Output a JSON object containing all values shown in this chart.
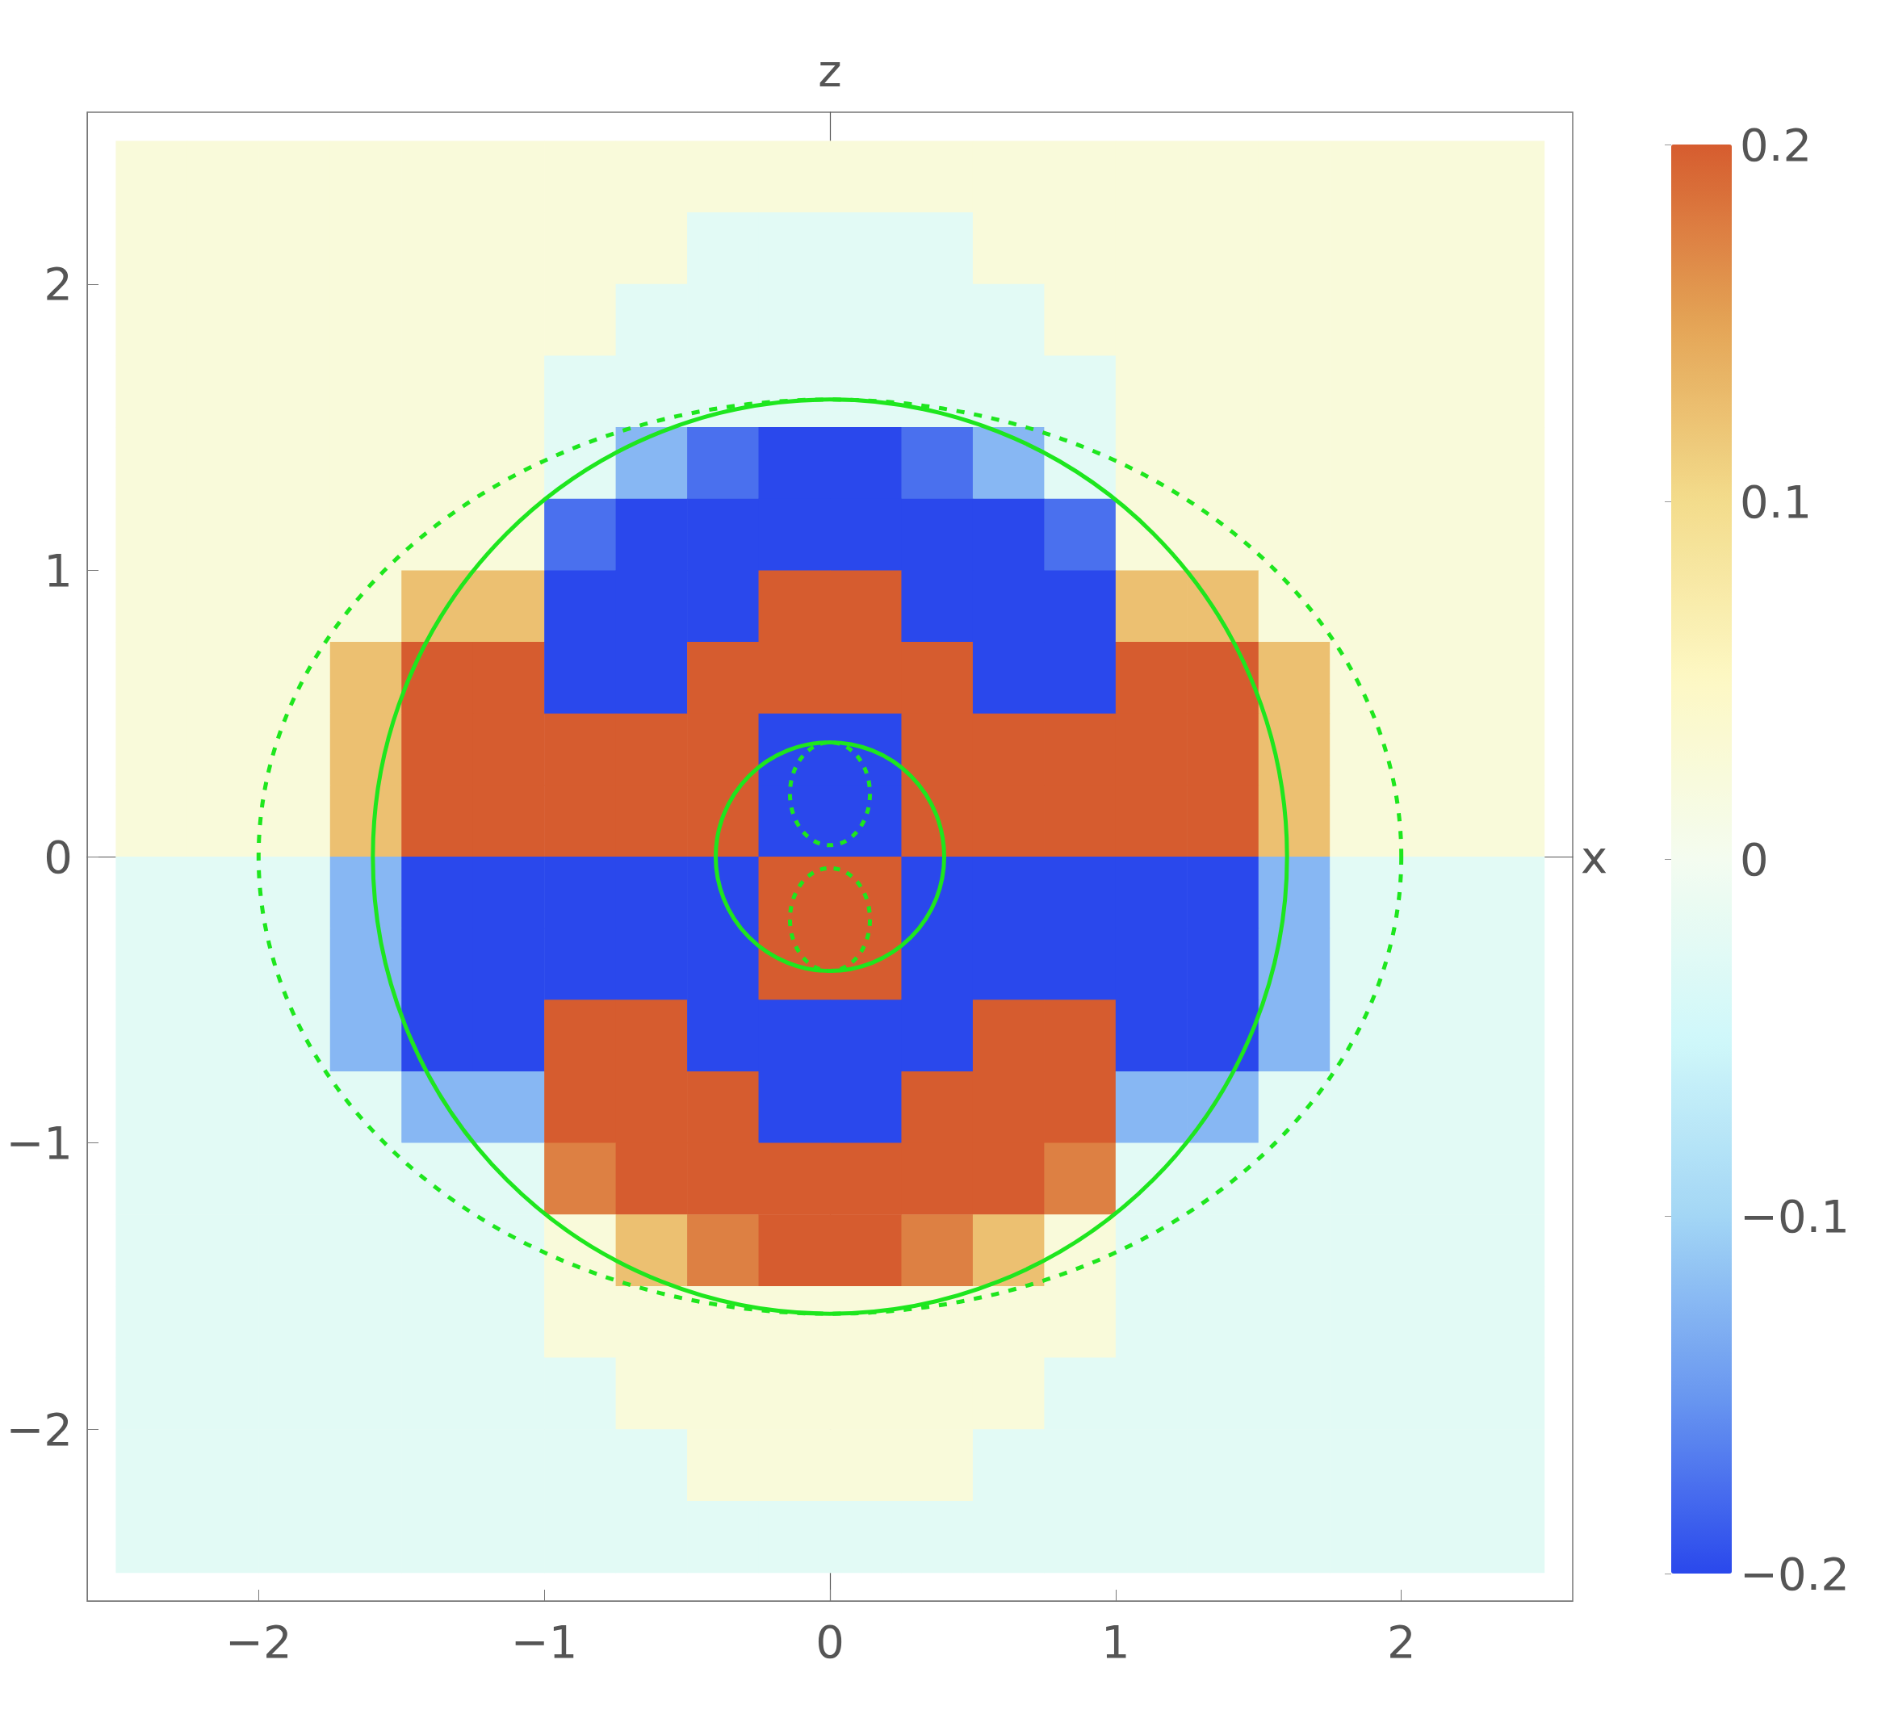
{
  "chart_data": {
    "type": "heatmap",
    "xlabel": "x",
    "ylabel": "z",
    "clabel": null,
    "x": [
      -2.375,
      -2.125,
      -1.875,
      -1.625,
      -1.375,
      -1.125,
      -0.875,
      -0.625,
      -0.375,
      -0.125,
      0.125,
      0.375,
      0.625,
      0.875,
      1.125,
      1.375,
      1.625,
      1.875,
      2.125,
      2.375
    ],
    "cells": [
      [
        0.025,
        0.025,
        0.025,
        0.025,
        0.025,
        0.025,
        0.025,
        0.025,
        0.025,
        0.025,
        0.025,
        0.025,
        0.025,
        0.025,
        0.025,
        0.025,
        0.025,
        0.025,
        0.025,
        0.025
      ],
      [
        0.025,
        0.025,
        0.025,
        0.025,
        0.025,
        0.025,
        0.025,
        0.025,
        -0.025,
        -0.025,
        -0.025,
        -0.025,
        0.025,
        0.025,
        0.025,
        0.025,
        0.025,
        0.025,
        0.025,
        0.025
      ],
      [
        0.025,
        0.025,
        0.025,
        0.025,
        0.025,
        0.025,
        0.025,
        -0.025,
        -0.025,
        -0.025,
        -0.025,
        -0.025,
        -0.025,
        0.025,
        0.025,
        0.025,
        0.025,
        0.025,
        0.025,
        0.025
      ],
      [
        0.025,
        0.025,
        0.025,
        0.025,
        0.025,
        0.025,
        -0.025,
        -0.025,
        -0.025,
        -0.025,
        -0.025,
        -0.025,
        -0.025,
        -0.025,
        0.025,
        0.025,
        0.025,
        0.025,
        0.025,
        0.025
      ],
      [
        0.025,
        0.025,
        0.025,
        0.025,
        0.025,
        0.025,
        -0.025,
        -0.125,
        -0.175,
        -0.2,
        -0.2,
        -0.175,
        -0.125,
        -0.025,
        0.025,
        0.025,
        0.025,
        0.025,
        0.025,
        0.025
      ],
      [
        0.025,
        0.025,
        0.025,
        0.025,
        0.025,
        0.025,
        -0.175,
        -0.2,
        -0.2,
        -0.2,
        -0.2,
        -0.2,
        -0.2,
        -0.175,
        0.025,
        0.025,
        0.025,
        0.025,
        0.025,
        0.025
      ],
      [
        0.025,
        0.025,
        0.025,
        0.025,
        0.125,
        0.125,
        -0.2,
        -0.2,
        -0.2,
        0.2,
        0.2,
        -0.2,
        -0.2,
        -0.2,
        0.125,
        0.125,
        0.025,
        0.025,
        0.025,
        0.025
      ],
      [
        0.025,
        0.025,
        0.025,
        0.125,
        0.2,
        0.2,
        -0.2,
        -0.2,
        0.2,
        0.2,
        0.2,
        0.2,
        -0.2,
        -0.2,
        0.2,
        0.2,
        0.125,
        0.025,
        0.025,
        0.025
      ],
      [
        0.025,
        0.025,
        0.025,
        0.125,
        0.2,
        0.2,
        0.2,
        0.2,
        0.2,
        -0.2,
        -0.2,
        0.2,
        0.2,
        0.2,
        0.2,
        0.2,
        0.125,
        0.025,
        0.025,
        0.025
      ],
      [
        0.025,
        0.025,
        0.025,
        0.125,
        0.2,
        0.2,
        0.2,
        0.2,
        0.2,
        -0.2,
        -0.2,
        0.2,
        0.2,
        0.2,
        0.2,
        0.2,
        0.125,
        0.025,
        0.025,
        0.025
      ],
      [
        -0.025,
        -0.025,
        -0.025,
        -0.125,
        -0.2,
        -0.2,
        -0.2,
        -0.2,
        -0.2,
        0.2,
        0.2,
        -0.2,
        -0.2,
        -0.2,
        -0.2,
        -0.2,
        -0.125,
        -0.025,
        -0.025,
        -0.025
      ],
      [
        -0.025,
        -0.025,
        -0.025,
        -0.125,
        -0.2,
        -0.2,
        -0.2,
        -0.2,
        -0.2,
        0.2,
        0.2,
        -0.2,
        -0.2,
        -0.2,
        -0.2,
        -0.2,
        -0.125,
        -0.025,
        -0.025,
        -0.025
      ],
      [
        -0.025,
        -0.025,
        -0.025,
        -0.125,
        -0.2,
        -0.2,
        0.2,
        0.2,
        -0.2,
        -0.2,
        -0.2,
        -0.2,
        0.2,
        0.2,
        -0.2,
        -0.2,
        -0.125,
        -0.025,
        -0.025,
        -0.025
      ],
      [
        -0.025,
        -0.025,
        -0.025,
        -0.025,
        -0.125,
        -0.125,
        0.2,
        0.2,
        0.2,
        -0.2,
        -0.2,
        0.2,
        0.2,
        0.2,
        -0.125,
        -0.125,
        -0.025,
        -0.025,
        -0.025,
        -0.025
      ],
      [
        -0.025,
        -0.025,
        -0.025,
        -0.025,
        -0.025,
        -0.025,
        0.175,
        0.2,
        0.2,
        0.2,
        0.2,
        0.2,
        0.2,
        0.175,
        -0.025,
        -0.025,
        -0.025,
        -0.025,
        -0.025,
        -0.025
      ],
      [
        -0.025,
        -0.025,
        -0.025,
        -0.025,
        -0.025,
        -0.025,
        0.025,
        0.125,
        0.175,
        0.2,
        0.2,
        0.175,
        0.125,
        0.025,
        -0.025,
        -0.025,
        -0.025,
        -0.025,
        -0.025,
        -0.025
      ],
      [
        -0.025,
        -0.025,
        -0.025,
        -0.025,
        -0.025,
        -0.025,
        0.025,
        0.025,
        0.025,
        0.025,
        0.025,
        0.025,
        0.025,
        0.025,
        -0.025,
        -0.025,
        -0.025,
        -0.025,
        -0.025,
        -0.025
      ],
      [
        -0.025,
        -0.025,
        -0.025,
        -0.025,
        -0.025,
        -0.025,
        -0.025,
        0.025,
        0.025,
        0.025,
        0.025,
        0.025,
        0.025,
        -0.025,
        -0.025,
        -0.025,
        -0.025,
        -0.025,
        -0.025,
        -0.025
      ],
      [
        -0.025,
        -0.025,
        -0.025,
        -0.025,
        -0.025,
        -0.025,
        -0.025,
        -0.025,
        0.025,
        0.025,
        0.025,
        0.025,
        -0.025,
        -0.025,
        -0.025,
        -0.025,
        -0.025,
        -0.025,
        -0.025,
        -0.025
      ],
      [
        -0.025,
        -0.025,
        -0.025,
        -0.025,
        -0.025,
        -0.025,
        -0.025,
        -0.025,
        -0.025,
        -0.025,
        -0.025,
        -0.025,
        -0.025,
        -0.025,
        -0.025,
        -0.025,
        -0.025,
        -0.025,
        -0.025,
        -0.025
      ]
    ],
    "clim": [
      -0.2,
      0.2
    ],
    "cticks": [
      -0.2,
      -0.1,
      0,
      0.1,
      0.2
    ],
    "xlim": [
      -2.6,
      2.6
    ],
    "ylim": [
      -2.6,
      2.6
    ],
    "xticks": [
      -2,
      -1,
      0,
      1,
      2
    ],
    "yticks": [
      -2,
      -1,
      0,
      1,
      2
    ]
  }
}
